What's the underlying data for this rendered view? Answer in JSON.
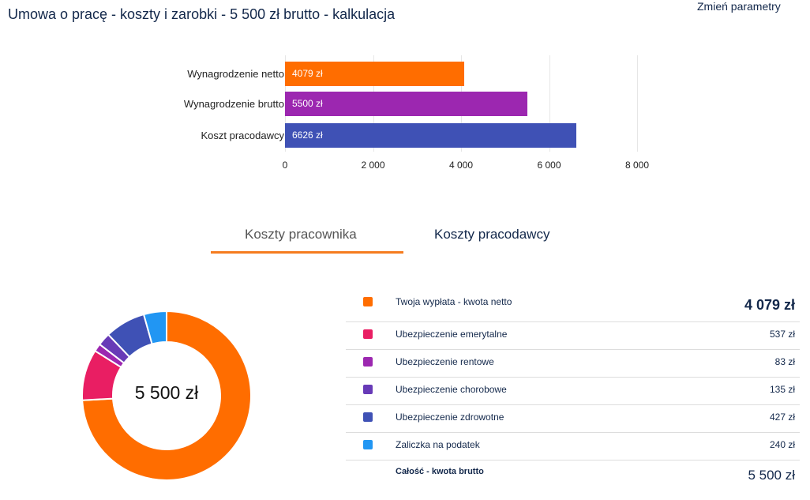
{
  "header": {
    "title": "Umowa o pracę - koszty i zarobki - 5 500 zł brutto - kalkulacja",
    "change_params": "Zmień parametry"
  },
  "chart_data": [
    {
      "type": "bar",
      "orientation": "horizontal",
      "categories": [
        "Wynagrodzenie netto",
        "Wynagrodzenie brutto",
        "Koszt pracodawcy"
      ],
      "values": [
        4079,
        5500,
        6626
      ],
      "value_labels": [
        "4079 zł",
        "5500 zł",
        "6626 zł"
      ],
      "colors": [
        "#ff6d00",
        "#9c27b0",
        "#3f51b5"
      ],
      "xlim": [
        0,
        8000
      ],
      "ticks": [
        0,
        2000,
        4000,
        6000,
        8000
      ],
      "tick_labels": [
        "0",
        "2 000",
        "4 000",
        "6 000",
        "8 000"
      ],
      "grid": true
    },
    {
      "type": "pie",
      "donut": true,
      "center_label": "5 500 zł",
      "labels": [
        "Twoja wypłata - kwota netto",
        "Ubezpieczenie emerytalne",
        "Ubezpieczenie rentowe",
        "Ubezpieczenie chorobowe",
        "Ubezpieczenie zdrowotne",
        "Zaliczka na podatek"
      ],
      "values": [
        4079,
        537,
        83,
        135,
        427,
        240
      ],
      "colors": [
        "#ff6d00",
        "#e91e63",
        "#9c27b0",
        "#673ab7",
        "#3f51b5",
        "#2196f3"
      ]
    }
  ],
  "tabs": [
    "Koszty pracownika",
    "Koszty pracodawcy"
  ],
  "table": {
    "rows": [
      {
        "label": "Twoja wypłata - kwota netto",
        "value": "4 079 zł"
      },
      {
        "label": "Ubezpieczenie emerytalne",
        "value": "537 zł"
      },
      {
        "label": "Ubezpieczenie rentowe",
        "value": "83 zł"
      },
      {
        "label": "Ubezpieczenie chorobowe",
        "value": "135 zł"
      },
      {
        "label": "Ubezpieczenie zdrowotne",
        "value": "427 zł"
      },
      {
        "label": "Zaliczka na podatek",
        "value": "240 zł"
      }
    ],
    "total": {
      "label": "Całość - kwota brutto",
      "value": "5 500 zł"
    }
  }
}
